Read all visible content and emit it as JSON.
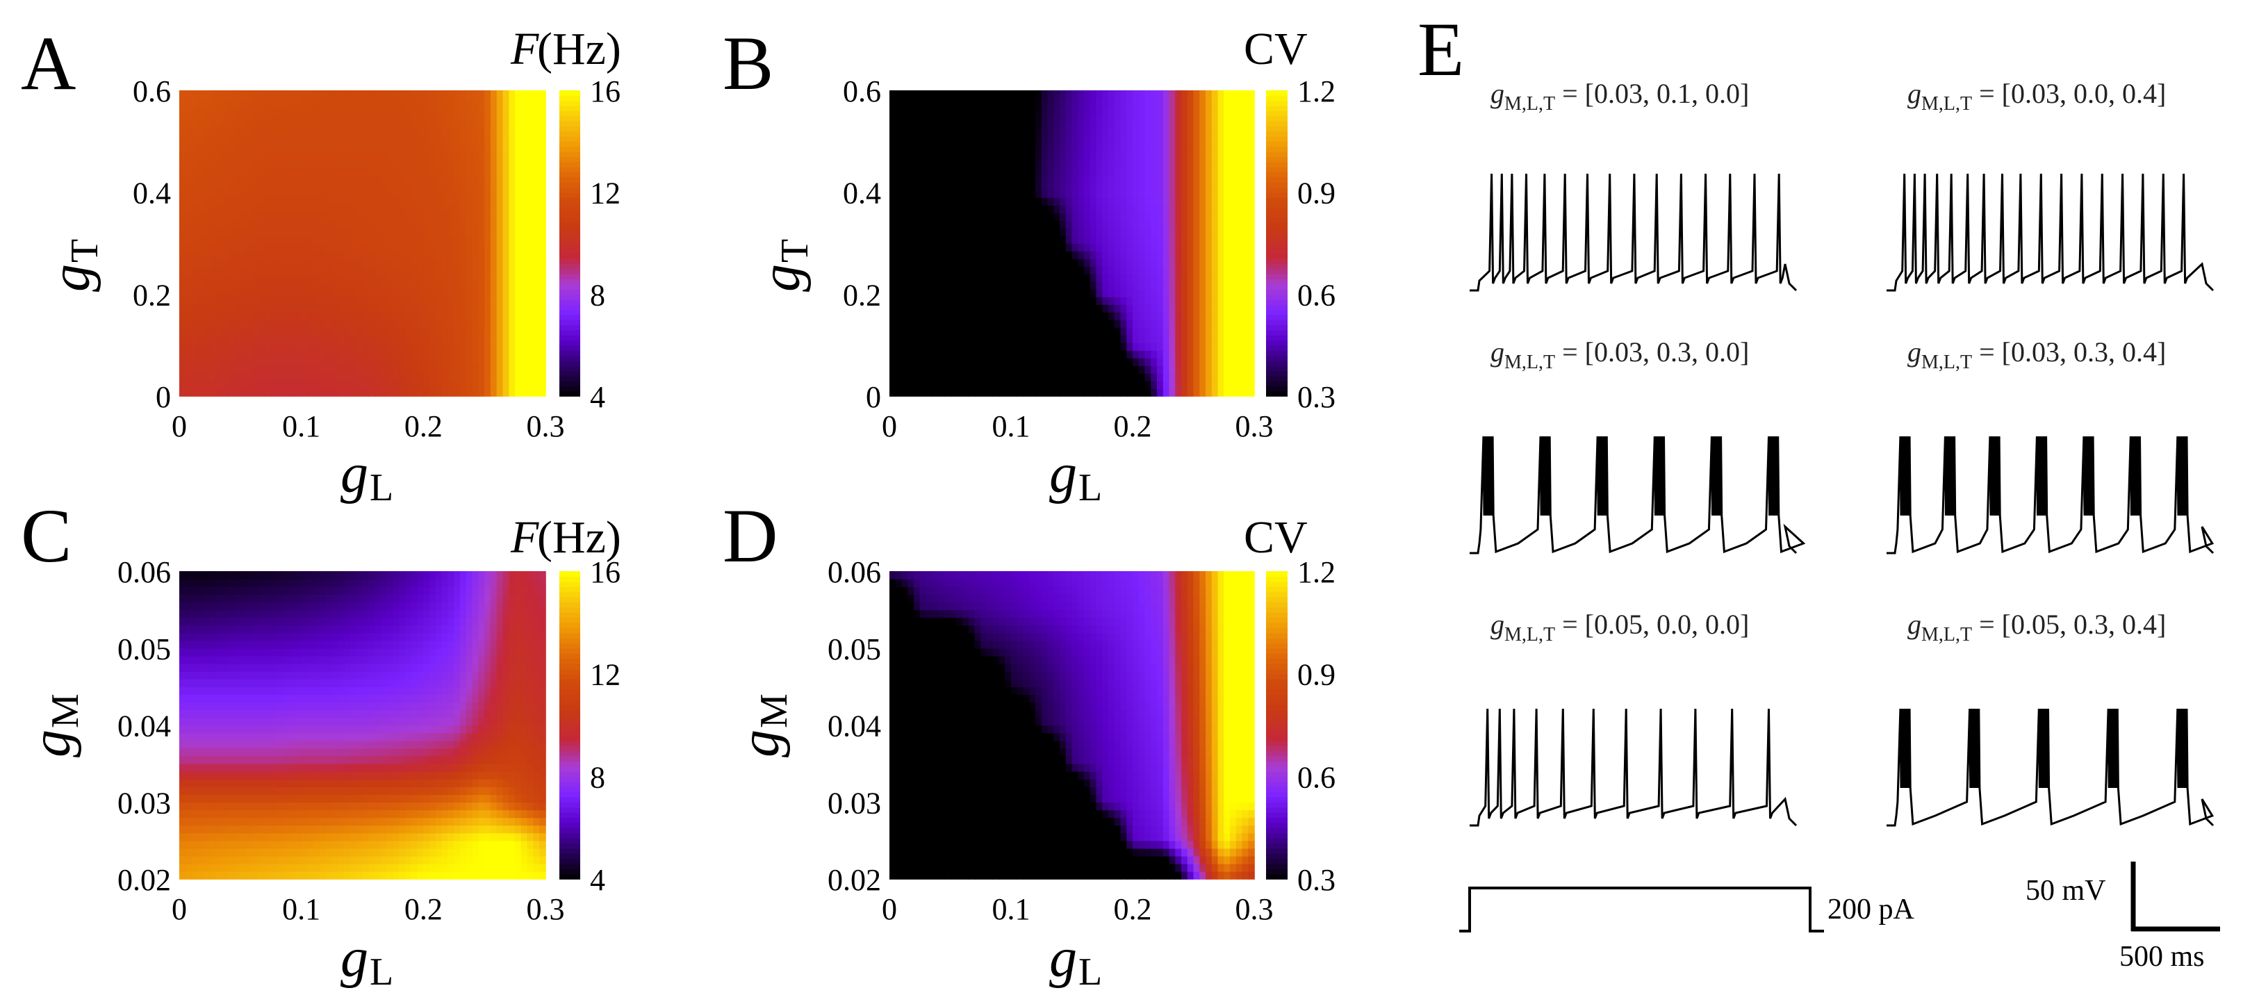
{
  "colormap": [
    "#000000",
    "#2a0060",
    "#5a00c8",
    "#7d24ff",
    "#a83cd6",
    "#c5283a",
    "#c83a14",
    "#d04a0c",
    "#e06a08",
    "#f09a06",
    "#f8c80a",
    "#ffff00"
  ],
  "chart_data": [
    {
      "id": "A",
      "type": "heatmap",
      "letter": "A",
      "xlabel": "g",
      "xsub": "L",
      "ylabel": "g",
      "ysub": "T",
      "x_range": [
        0,
        0.3
      ],
      "y_range": [
        0,
        0.6
      ],
      "x_ticks": [
        "0",
        "0.1",
        "0.2",
        "0.3"
      ],
      "x_tick_values": [
        0,
        0.1,
        0.2,
        0.3
      ],
      "y_ticks": [
        "0",
        "0.2",
        "0.4",
        "0.6"
      ],
      "y_tick_values": [
        0,
        0.2,
        0.4,
        0.6
      ],
      "colorbar": {
        "title_it": "F",
        "title": "(Hz)",
        "min": 4,
        "max": 16,
        "ticks": [
          "4",
          "8",
          "12",
          "16"
        ],
        "tick_values": [
          4,
          8,
          12,
          16
        ]
      },
      "grid_x": [
        0,
        0.025,
        0.05,
        0.075,
        0.1,
        0.125,
        0.15,
        0.175,
        0.2,
        0.225,
        0.25,
        0.275,
        0.3
      ],
      "grid_y": [
        0,
        0.1,
        0.2,
        0.3,
        0.4,
        0.5,
        0.6
      ],
      "grid_z": [
        [
          10.0,
          10.0,
          9.8,
          9.7,
          9.7,
          9.8,
          9.9,
          10.2,
          10.6,
          11.3,
          12.0,
          16.0,
          16.0
        ],
        [
          10.4,
          10.3,
          10.2,
          10.1,
          10.1,
          10.2,
          10.3,
          10.5,
          10.9,
          11.4,
          12.0,
          16.0,
          16.0
        ],
        [
          10.9,
          10.8,
          10.7,
          10.6,
          10.6,
          10.7,
          10.8,
          11.0,
          11.2,
          11.5,
          12.0,
          16.0,
          16.0
        ],
        [
          11.3,
          11.2,
          11.1,
          11.0,
          11.0,
          11.1,
          11.2,
          11.3,
          11.4,
          11.6,
          12.0,
          16.0,
          16.0
        ],
        [
          11.6,
          11.5,
          11.4,
          11.3,
          11.3,
          11.3,
          11.3,
          11.4,
          11.5,
          11.7,
          12.0,
          16.0,
          16.0
        ],
        [
          11.8,
          11.7,
          11.6,
          11.5,
          11.5,
          11.5,
          11.5,
          11.5,
          11.6,
          11.8,
          12.1,
          16.0,
          16.0
        ],
        [
          12.0,
          11.9,
          11.8,
          11.7,
          11.7,
          11.6,
          11.6,
          11.6,
          11.7,
          11.9,
          12.2,
          16.0,
          16.0
        ]
      ]
    },
    {
      "id": "B",
      "type": "heatmap",
      "letter": "B",
      "xlabel": "g",
      "xsub": "L",
      "ylabel": "g",
      "ysub": "T",
      "x_range": [
        0,
        0.3
      ],
      "y_range": [
        0,
        0.6
      ],
      "x_ticks": [
        "0",
        "0.1",
        "0.2",
        "0.3"
      ],
      "x_tick_values": [
        0,
        0.1,
        0.2,
        0.3
      ],
      "y_ticks": [
        "0",
        "0.2",
        "0.4",
        "0.6"
      ],
      "y_tick_values": [
        0,
        0.2,
        0.4,
        0.6
      ],
      "colorbar": {
        "title_it": "",
        "title": "CV",
        "min": 0.3,
        "max": 1.2,
        "ticks": [
          "0.3",
          "0.6",
          "0.9",
          "1.2"
        ],
        "tick_values": [
          0.3,
          0.6,
          0.9,
          1.2
        ]
      },
      "grid_x": [
        0,
        0.025,
        0.05,
        0.075,
        0.1,
        0.125,
        0.15,
        0.175,
        0.2,
        0.225,
        0.25,
        0.275,
        0.3
      ],
      "grid_y": [
        0,
        0.1,
        0.2,
        0.3,
        0.4,
        0.5,
        0.6
      ],
      "grid_z": [
        [
          0.0,
          0.0,
          0.0,
          0.0,
          0.0,
          0.0,
          0.0,
          0.0,
          0.0,
          0.5,
          0.9,
          1.2,
          1.2
        ],
        [
          0.0,
          0.0,
          0.0,
          0.0,
          0.0,
          0.0,
          0.0,
          0.0,
          0.48,
          0.52,
          0.9,
          1.2,
          1.2
        ],
        [
          0.0,
          0.0,
          0.0,
          0.0,
          0.0,
          0.0,
          0.0,
          0.45,
          0.5,
          0.54,
          0.9,
          1.2,
          1.2
        ],
        [
          0.0,
          0.0,
          0.0,
          0.0,
          0.0,
          0.0,
          0.42,
          0.48,
          0.52,
          0.55,
          0.9,
          1.2,
          1.2
        ],
        [
          0.0,
          0.0,
          0.0,
          0.0,
          0.0,
          0.38,
          0.44,
          0.5,
          0.53,
          0.56,
          0.9,
          1.2,
          1.2
        ],
        [
          0.0,
          0.0,
          0.0,
          0.0,
          0.0,
          0.36,
          0.43,
          0.49,
          0.53,
          0.56,
          0.9,
          1.2,
          1.2
        ],
        [
          0.0,
          0.0,
          0.0,
          0.0,
          0.0,
          0.34,
          0.42,
          0.48,
          0.53,
          0.56,
          0.9,
          1.2,
          1.2
        ]
      ]
    },
    {
      "id": "C",
      "type": "heatmap",
      "letter": "C",
      "xlabel": "g",
      "xsub": "L",
      "ylabel": "g",
      "ysub": "M",
      "x_range": [
        0,
        0.3
      ],
      "y_range": [
        0.02,
        0.06
      ],
      "x_ticks": [
        "0",
        "0.1",
        "0.2",
        "0.3"
      ],
      "x_tick_values": [
        0,
        0.1,
        0.2,
        0.3
      ],
      "y_ticks": [
        "0.02",
        "0.03",
        "0.04",
        "0.05",
        "0.06"
      ],
      "y_tick_values": [
        0.02,
        0.03,
        0.04,
        0.05,
        0.06
      ],
      "colorbar": {
        "title_it": "F",
        "title": "(Hz)",
        "min": 4,
        "max": 16,
        "ticks": [
          "4",
          "8",
          "12",
          "16"
        ],
        "tick_values": [
          4,
          8,
          12,
          16
        ]
      },
      "grid_x": [
        0,
        0.025,
        0.05,
        0.075,
        0.1,
        0.125,
        0.15,
        0.175,
        0.2,
        0.225,
        0.25,
        0.275,
        0.3
      ],
      "grid_y": [
        0.02,
        0.025,
        0.03,
        0.035,
        0.04,
        0.045,
        0.05,
        0.055,
        0.06
      ],
      "grid_z": [
        [
          14.0,
          14.2,
          14.4,
          14.6,
          14.8,
          15.0,
          15.3,
          15.6,
          16.0,
          16.0,
          16.0,
          16.0,
          16.0
        ],
        [
          13.2,
          13.3,
          13.4,
          13.5,
          13.6,
          13.8,
          14.0,
          14.3,
          14.8,
          15.5,
          16.0,
          16.0,
          14.5
        ],
        [
          11.8,
          11.8,
          11.8,
          11.8,
          11.9,
          11.9,
          12.0,
          12.1,
          12.3,
          12.7,
          13.5,
          12.0,
          11.0
        ],
        [
          9.0,
          9.0,
          9.0,
          9.0,
          9.1,
          9.1,
          9.2,
          9.3,
          9.5,
          9.8,
          10.8,
          11.0,
          10.5
        ],
        [
          7.9,
          7.9,
          7.9,
          7.9,
          8.0,
          8.0,
          8.0,
          8.1,
          8.2,
          8.4,
          9.5,
          10.5,
          10.0
        ],
        [
          7.0,
          7.0,
          7.0,
          7.0,
          7.1,
          7.1,
          7.2,
          7.3,
          7.5,
          7.8,
          9.0,
          10.2,
          9.8
        ],
        [
          6.0,
          6.0,
          6.1,
          6.1,
          6.2,
          6.3,
          6.5,
          6.7,
          7.0,
          7.4,
          8.6,
          10.0,
          9.6
        ],
        [
          5.0,
          5.1,
          5.2,
          5.3,
          5.4,
          5.6,
          5.8,
          6.1,
          6.5,
          7.0,
          8.3,
          9.8,
          9.4
        ],
        [
          4.2,
          4.2,
          4.3,
          4.4,
          4.6,
          4.8,
          5.1,
          5.5,
          6.0,
          6.7,
          8.0,
          9.6,
          9.2
        ]
      ]
    },
    {
      "id": "D",
      "type": "heatmap",
      "letter": "D",
      "xlabel": "g",
      "xsub": "L",
      "ylabel": "g",
      "ysub": "M",
      "x_range": [
        0,
        0.3
      ],
      "y_range": [
        0.02,
        0.06
      ],
      "x_ticks": [
        "0",
        "0.1",
        "0.2",
        "0.3"
      ],
      "x_tick_values": [
        0,
        0.1,
        0.2,
        0.3
      ],
      "y_ticks": [
        "0.02",
        "0.03",
        "0.04",
        "0.05",
        "0.06"
      ],
      "y_tick_values": [
        0.02,
        0.03,
        0.04,
        0.05,
        0.06
      ],
      "colorbar": {
        "title_it": "",
        "title": "CV",
        "min": 0.3,
        "max": 1.2,
        "ticks": [
          "0.3",
          "0.6",
          "0.9",
          "1.2"
        ],
        "tick_values": [
          0.3,
          0.6,
          0.9,
          1.2
        ]
      },
      "grid_x": [
        0,
        0.025,
        0.05,
        0.075,
        0.1,
        0.125,
        0.15,
        0.175,
        0.2,
        0.225,
        0.25,
        0.275,
        0.3
      ],
      "grid_y": [
        0.02,
        0.025,
        0.03,
        0.035,
        0.04,
        0.045,
        0.05,
        0.055,
        0.06
      ],
      "grid_z": [
        [
          0.0,
          0.0,
          0.0,
          0.0,
          0.0,
          0.0,
          0.0,
          0.0,
          0.0,
          0.0,
          0.5,
          0.9,
          0.75
        ],
        [
          0.0,
          0.0,
          0.0,
          0.0,
          0.0,
          0.0,
          0.0,
          0.0,
          0.46,
          0.5,
          0.7,
          1.2,
          1.0
        ],
        [
          0.0,
          0.0,
          0.0,
          0.0,
          0.0,
          0.0,
          0.0,
          0.44,
          0.48,
          0.52,
          0.75,
          1.2,
          1.2
        ],
        [
          0.0,
          0.0,
          0.0,
          0.0,
          0.0,
          0.0,
          0.4,
          0.45,
          0.49,
          0.53,
          0.78,
          1.2,
          1.2
        ],
        [
          0.0,
          0.0,
          0.0,
          0.0,
          0.0,
          0.36,
          0.42,
          0.46,
          0.5,
          0.54,
          0.8,
          1.2,
          1.2
        ],
        [
          0.0,
          0.0,
          0.0,
          0.0,
          0.34,
          0.38,
          0.43,
          0.47,
          0.51,
          0.55,
          0.82,
          1.2,
          1.2
        ],
        [
          0.0,
          0.0,
          0.0,
          0.35,
          0.38,
          0.41,
          0.45,
          0.48,
          0.52,
          0.56,
          0.84,
          1.2,
          1.2
        ],
        [
          0.0,
          0.38,
          0.4,
          0.42,
          0.44,
          0.46,
          0.48,
          0.51,
          0.53,
          0.57,
          0.86,
          1.2,
          1.2
        ],
        [
          0.4,
          0.42,
          0.44,
          0.45,
          0.46,
          0.48,
          0.5,
          0.52,
          0.54,
          0.58,
          0.88,
          1.2,
          1.2
        ]
      ]
    }
  ],
  "panel_e": {
    "letter": "E",
    "title_prefix": "g",
    "title_sub": "M,L,T",
    "traces": [
      {
        "title": " = [0.03, 0.1, 0.0]",
        "mode": "tonic",
        "spike_times_ms": [
          60,
          110,
          160,
          230,
          320,
          420,
          530,
          640,
          760,
          870,
          990,
          1110,
          1230,
          1350,
          1470
        ]
      },
      {
        "title": " = [0.03, 0.0, 0.4]",
        "mode": "tonic",
        "spike_times_ms": [
          40,
          90,
          140,
          200,
          270,
          350,
          430,
          520,
          610,
          710,
          810,
          910,
          1010,
          1110,
          1210,
          1310,
          1410
        ]
      },
      {
        "title": " = [0.03, 0.3, 0.0]",
        "mode": "burst",
        "burst_times_ms": [
          20,
          300,
          580,
          860,
          1140,
          1420
        ]
      },
      {
        "title": " = [0.03, 0.3, 0.4]",
        "mode": "burst",
        "burst_times_ms": [
          20,
          240,
          460,
          690,
          920,
          1150,
          1380
        ]
      },
      {
        "title": " = [0.05, 0.0, 0.0]",
        "mode": "tonic",
        "spike_times_ms": [
          40,
          100,
          170,
          280,
          410,
          560,
          720,
          890,
          1060,
          1240,
          1420
        ]
      },
      {
        "title": " = [0.05, 0.3, 0.4]",
        "mode": "burst",
        "burst_times_ms": [
          20,
          360,
          700,
          1040,
          1380
        ]
      }
    ],
    "stimulus": {
      "amplitude_label": "200 pA",
      "duration_ms": 1500
    },
    "scale_bar": {
      "voltage_label": "50 mV",
      "time_label": "500 ms"
    }
  }
}
